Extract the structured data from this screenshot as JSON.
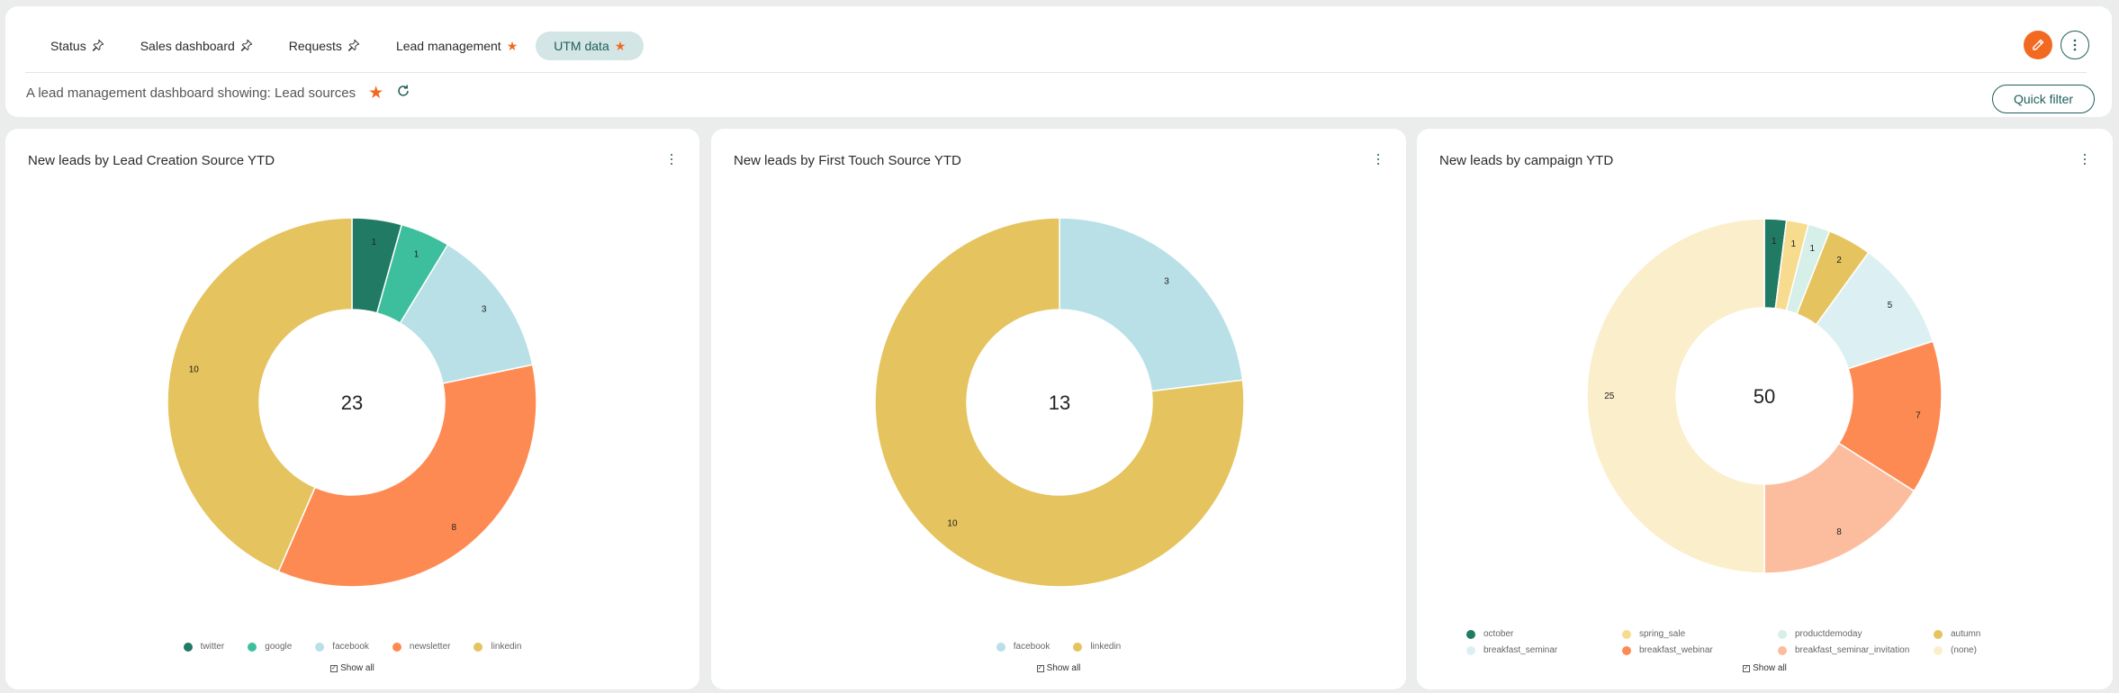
{
  "header": {
    "tabs": [
      {
        "label": "Status",
        "icon": "pin-icon",
        "active": false
      },
      {
        "label": "Sales dashboard",
        "icon": "pin-icon",
        "active": false
      },
      {
        "label": "Requests",
        "icon": "pin-icon",
        "active": false
      },
      {
        "label": "Lead management",
        "icon": "star-icon",
        "active": false
      },
      {
        "label": "UTM data",
        "icon": "star-icon",
        "active": true
      }
    ],
    "subtitle": "A lead management dashboard showing: Lead sources",
    "quick_filter_label": "Quick filter",
    "edit_icon": "pencil-icon",
    "more_icon": "more-vertical-icon"
  },
  "colors": {
    "accent_teal": "#1f5e5a",
    "accent_orange": "#f26a21",
    "tab_active_bg": "#d3e5e4"
  },
  "show_all_label": "Show all",
  "chart_data": [
    {
      "type": "pie",
      "donut": true,
      "title": "New leads by Lead Creation Source YTD",
      "total_label": "23",
      "categories": [
        "twitter",
        "google",
        "facebook",
        "newsletter",
        "linkedin"
      ],
      "values": [
        1,
        1,
        3,
        8,
        10
      ],
      "colors": [
        "#217a63",
        "#3dbf9e",
        "#b8e0e6",
        "#fe8a53",
        "#e5c35e"
      ],
      "legend_position": "bottom"
    },
    {
      "type": "pie",
      "donut": true,
      "title": "New leads by First Touch Source YTD",
      "total_label": "13",
      "categories": [
        "facebook",
        "linkedin"
      ],
      "values": [
        3,
        10
      ],
      "colors": [
        "#b8e0e6",
        "#e5c35e"
      ],
      "legend_position": "bottom"
    },
    {
      "type": "pie",
      "donut": true,
      "title": "New leads by campaign YTD",
      "total_label": "50",
      "categories": [
        "october",
        "spring_sale",
        "productdemoday",
        "autumn",
        "breakfast_seminar",
        "breakfast_webinar",
        "breakfast_seminar_invitation",
        "(none)"
      ],
      "values": [
        1,
        1,
        1,
        2,
        5,
        7,
        8,
        25
      ],
      "colors": [
        "#217a63",
        "#f7dc8f",
        "#d6efe9",
        "#e5c35e",
        "#dcf0f4",
        "#fe8a53",
        "#fbbd9e",
        "#fbeecb"
      ],
      "legend_position": "bottom"
    }
  ]
}
